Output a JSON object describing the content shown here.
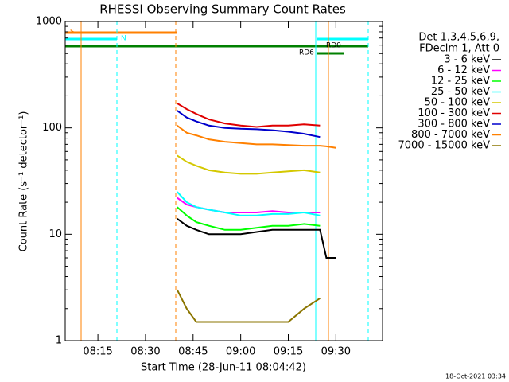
{
  "chart_data": {
    "type": "line",
    "title": "RHESSI Observing Summary Count Rates",
    "xlabel": "Start Time (28-Jun-11 08:04:42)",
    "ylabel": "Count Rate (s⁻¹ detector⁻¹)",
    "legend_header": [
      "Det 1,3,4,5,6,9,",
      "FDecim 1, Att 0"
    ],
    "footer": "18-Oct-2021 03:34",
    "annotations": [
      "S",
      "N",
      "RD0",
      "RD6"
    ],
    "log_y": true,
    "x": [
      520,
      523,
      526,
      530,
      535,
      540,
      545,
      550,
      555,
      560,
      565,
      567,
      570
    ],
    "xlim": [
      484.7,
      584.7
    ],
    "xticks": [
      {
        "value": 495,
        "label": "08:15"
      },
      {
        "value": 510,
        "label": "08:30"
      },
      {
        "value": 525,
        "label": "08:45"
      },
      {
        "value": 540,
        "label": "09:00"
      },
      {
        "value": 555,
        "label": "09:15"
      },
      {
        "value": 570,
        "label": "09:30"
      }
    ],
    "ylim": [
      1,
      1000
    ],
    "yticks": [
      1,
      10,
      100,
      1000
    ],
    "series": [
      {
        "name": "3 - 6 keV",
        "color": "#000000",
        "values": [
          14,
          12,
          11,
          10,
          10,
          10,
          10.5,
          11,
          11,
          11,
          11,
          6,
          6
        ]
      },
      {
        "name": "6 - 12 keV",
        "color": "#ff00ff",
        "values": [
          22,
          19,
          18,
          17,
          16,
          16,
          16,
          16.5,
          16,
          16,
          16,
          null,
          null
        ]
      },
      {
        "name": "12 - 25 keV",
        "color": "#00ff00",
        "values": [
          18,
          15,
          13,
          12,
          11,
          11,
          11.5,
          12,
          12,
          12.5,
          12,
          null,
          null
        ]
      },
      {
        "name": "25 - 50 keV",
        "color": "#00ffff",
        "values": [
          25,
          20,
          18,
          17,
          16,
          15,
          15,
          15.5,
          15.5,
          16,
          15,
          null,
          null
        ]
      },
      {
        "name": "50 - 100 keV",
        "color": "#d4c800",
        "values": [
          55,
          48,
          44,
          40,
          38,
          37,
          37,
          38,
          39,
          40,
          38,
          null,
          null
        ]
      },
      {
        "name": "100 - 300 keV",
        "color": "#e00000",
        "values": [
          170,
          150,
          135,
          120,
          110,
          105,
          102,
          105,
          105,
          108,
          105,
          null,
          null
        ]
      },
      {
        "name": "300 - 800 keV",
        "color": "#0000cc",
        "values": [
          145,
          125,
          115,
          105,
          100,
          98,
          97,
          95,
          92,
          88,
          82,
          null,
          null
        ]
      },
      {
        "name": "800 - 7000 keV",
        "color": "#ff8000",
        "values": [
          105,
          90,
          85,
          78,
          74,
          72,
          70,
          70,
          69,
          68,
          68,
          67,
          65
        ]
      },
      {
        "name": "7000 - 15000 keV",
        "color": "#8b7500",
        "values": [
          3,
          2,
          1.5,
          1.5,
          1.5,
          1.5,
          1.5,
          1.5,
          1.5,
          2,
          2.5,
          null,
          null
        ]
      }
    ]
  }
}
